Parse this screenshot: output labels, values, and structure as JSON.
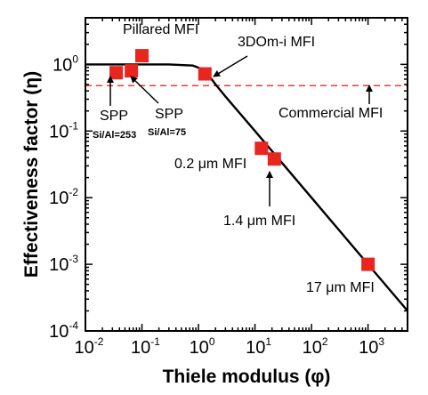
{
  "chart_data": {
    "type": "scatter",
    "xlabel": "Thiele modulus (φ)",
    "ylabel": "Effectiveness factor (η)",
    "x_scale": "log",
    "y_scale": "log",
    "xlim": [
      0.01,
      5000
    ],
    "ylim": [
      0.0001,
      5
    ],
    "x_ticks": [
      {
        "value": 0.01,
        "base": "10",
        "exp": "-2"
      },
      {
        "value": 0.1,
        "base": "10",
        "exp": "-1"
      },
      {
        "value": 1,
        "base": "10",
        "exp": "0"
      },
      {
        "value": 10,
        "base": "10",
        "exp": "1"
      },
      {
        "value": 100,
        "base": "10",
        "exp": "2"
      },
      {
        "value": 1000,
        "base": "10",
        "exp": "3"
      }
    ],
    "y_ticks": [
      {
        "value": 0.0001,
        "base": "10",
        "exp": "-4"
      },
      {
        "value": 0.001,
        "base": "10",
        "exp": "-3"
      },
      {
        "value": 0.01,
        "base": "10",
        "exp": "-2"
      },
      {
        "value": 0.1,
        "base": "10",
        "exp": "-1"
      },
      {
        "value": 1,
        "base": "10",
        "exp": "0"
      }
    ],
    "grid": false,
    "curve": {
      "description_type": "theoretical effectiveness curve",
      "color": "#000000",
      "points": [
        [
          0.01,
          1.0
        ],
        [
          0.3,
          1.0
        ],
        [
          0.8,
          0.96
        ],
        [
          1.3,
          0.82
        ],
        [
          2.0,
          0.5
        ],
        [
          3.0,
          0.33
        ],
        [
          10,
          0.1
        ],
        [
          100,
          0.01
        ],
        [
          1000,
          0.001
        ],
        [
          5000,
          0.0002
        ]
      ]
    },
    "reference_line": {
      "y": 0.48,
      "color": "#ef3b2c",
      "style": "dashed",
      "label": "Commercial MFI"
    },
    "series": [
      {
        "marker": "square",
        "color": "#e8251e",
        "points": [
          {
            "x": 0.035,
            "y": 0.75
          },
          {
            "x": 0.065,
            "y": 0.8
          },
          {
            "x": 0.1,
            "y": 1.35
          },
          {
            "x": 1.3,
            "y": 0.72
          },
          {
            "x": 13,
            "y": 0.055
          },
          {
            "x": 22,
            "y": 0.038
          },
          {
            "x": 1000,
            "y": 0.001
          }
        ]
      }
    ],
    "annotations": [
      {
        "text": "Pillared MFI",
        "sub": ""
      },
      {
        "text": "3DOm-i MFI",
        "sub": ""
      },
      {
        "text": "Commercial MFI",
        "sub": ""
      },
      {
        "text": "SPP",
        "sub": "Si/Al=253"
      },
      {
        "text": "SPP",
        "sub": "Si/Al=75"
      },
      {
        "text": "0.2 μm MFI",
        "sub": ""
      },
      {
        "text": "1.4 μm MFI",
        "sub": ""
      },
      {
        "text": "17 μm MFI",
        "sub": ""
      }
    ]
  }
}
